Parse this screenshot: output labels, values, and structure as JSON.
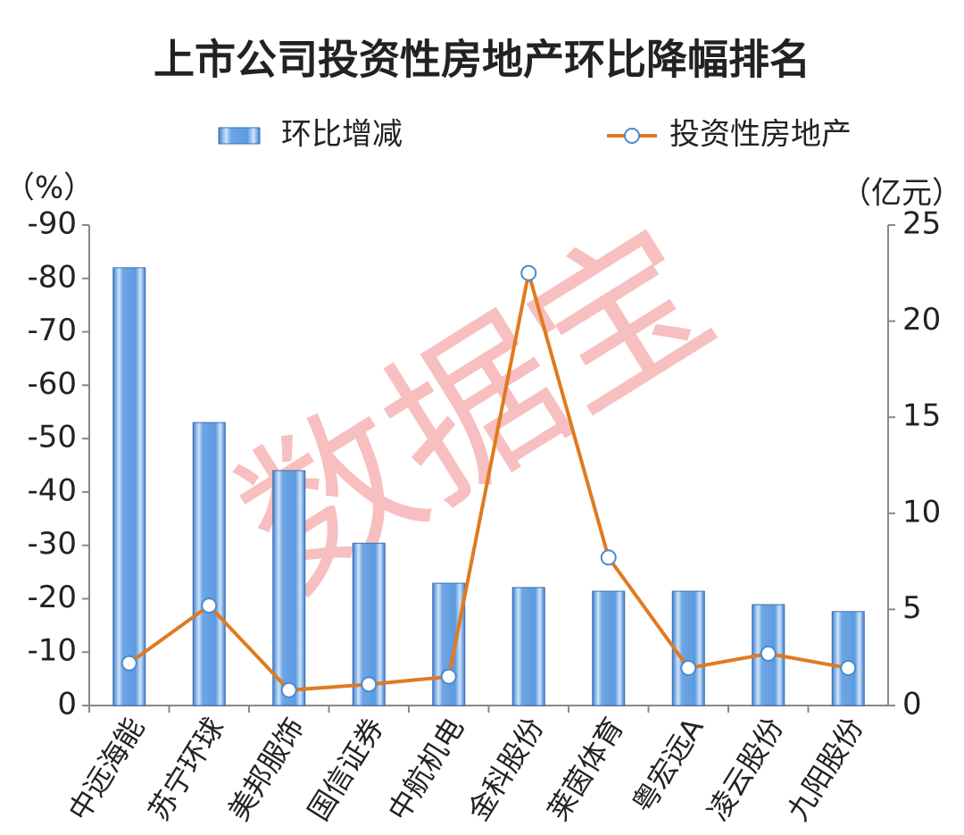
{
  "chart_data": {
    "type": "bar-line",
    "title": "上市公司投资性房地产环比降幅排名",
    "y_unit": "（%）",
    "y2_unit": "（亿元）",
    "watermark": "数据宝",
    "categories": [
      "中远海能",
      "苏宁环球",
      "美邦服饰",
      "国信证券",
      "中航机电",
      "金科股份",
      "莱茵体育",
      "粤宏远A",
      "凌云股份",
      "九阳股份"
    ],
    "series": [
      {
        "name": "环比增减",
        "type": "bar",
        "color": "#5b9be0",
        "values": [
          -82,
          -53,
          -44,
          -30.4,
          -22.9,
          -22.1,
          -21.4,
          -21.4,
          -18.9,
          -17.6
        ]
      },
      {
        "name": "投资性房地产",
        "type": "line",
        "axis": "y2",
        "color": "#e07a20",
        "values": [
          2.2,
          5.2,
          0.8,
          1.1,
          1.5,
          22.5,
          7.7,
          1.95,
          2.7,
          1.95
        ]
      }
    ],
    "ylim": [
      0,
      -90
    ],
    "yticks": [
      0,
      -10,
      -20,
      -30,
      -40,
      -50,
      -60,
      -70,
      -80,
      -90
    ],
    "y2lim": [
      0,
      25
    ],
    "y2ticks": [
      0,
      5,
      10,
      15,
      20,
      25
    ]
  }
}
